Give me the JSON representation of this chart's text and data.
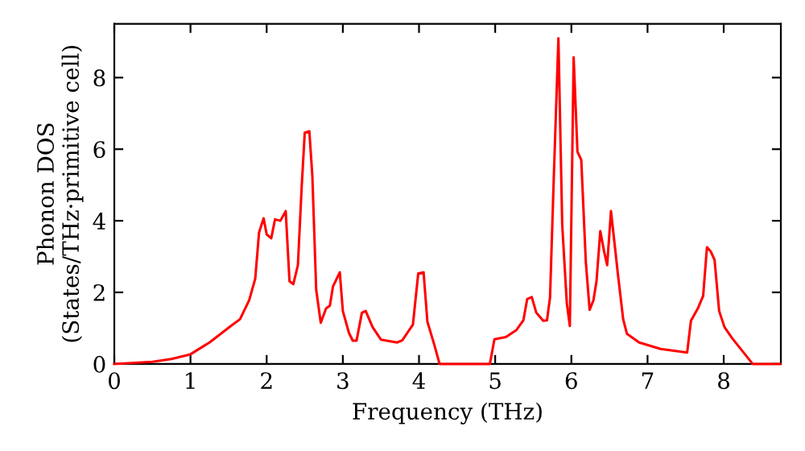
{
  "chart_data": {
    "type": "line",
    "xlabel": "Frequency (THz)",
    "ylabel": "Phonon DOS\n(States/THz·primitive cell)",
    "xlim": [
      0,
      8.75
    ],
    "ylim": [
      0,
      9.5
    ],
    "xticks": [
      0,
      1,
      2,
      3,
      4,
      5,
      6,
      7,
      8
    ],
    "yticks": [
      0,
      2,
      4,
      6,
      8
    ],
    "grid": false,
    "legend": false,
    "marker": "none",
    "line_style": "solid",
    "series": [
      {
        "color": "#ff0000",
        "x": [
          0,
          0.5,
          0.75,
          1,
          1.25,
          1.53,
          1.65,
          1.77,
          1.85,
          1.9,
          1.96,
          2.0,
          2.06,
          2.11,
          2.18,
          2.25,
          2.3,
          2.35,
          2.41,
          2.46,
          2.5,
          2.56,
          2.6,
          2.65,
          2.71,
          2.78,
          2.83,
          2.87,
          2.96,
          3.0,
          3.08,
          3.13,
          3.18,
          3.25,
          3.3,
          3.39,
          3.5,
          3.71,
          3.78,
          3.92,
          3.99,
          4.06,
          4.11,
          4.2,
          4.27,
          4.93,
          4.99,
          5.14,
          5.28,
          5.37,
          5.42,
          5.48,
          5.54,
          5.63,
          5.68,
          5.72,
          5.77,
          5.83,
          5.88,
          5.94,
          5.98,
          6.03,
          6.08,
          6.13,
          6.19,
          6.24,
          6.29,
          6.33,
          6.38,
          6.43,
          6.47,
          6.52,
          6.61,
          6.68,
          6.73,
          6.89,
          7.17,
          7.52,
          7.57,
          7.66,
          7.73,
          7.78,
          7.83,
          7.88,
          7.94,
          8.01,
          8.11,
          8.38,
          8.74
        ],
        "values": [
          0,
          0.06,
          0.14,
          0.27,
          0.6,
          1.06,
          1.25,
          1.78,
          2.38,
          3.67,
          4.07,
          3.62,
          3.51,
          4.04,
          4.0,
          4.27,
          2.31,
          2.23,
          2.76,
          4.95,
          6.46,
          6.5,
          5.25,
          2.08,
          1.15,
          1.55,
          1.63,
          2.16,
          2.56,
          1.48,
          0.87,
          0.65,
          0.65,
          1.43,
          1.48,
          1.03,
          0.68,
          0.6,
          0.66,
          1.1,
          2.53,
          2.56,
          1.18,
          0.54,
          0,
          0,
          0.69,
          0.75,
          0.95,
          1.22,
          1.81,
          1.87,
          1.43,
          1.21,
          1.22,
          1.86,
          5.25,
          9.1,
          3.89,
          1.7,
          1.06,
          8.57,
          5.93,
          5.7,
          2.84,
          1.51,
          1.78,
          2.31,
          3.71,
          3.14,
          2.76,
          4.27,
          2.53,
          1.25,
          0.84,
          0.6,
          0.42,
          0.32,
          1.21,
          1.55,
          1.9,
          3.26,
          3.14,
          2.91,
          1.48,
          1.03,
          0.72,
          0,
          0
        ]
      }
    ]
  }
}
